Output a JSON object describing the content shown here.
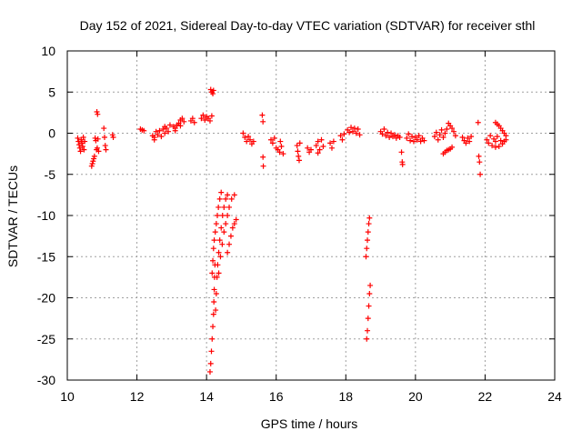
{
  "chart_data": {
    "type": "scatter",
    "title": "Day 152 of 2021, Sidereal Day-to-day VTEC variation (SDTVAR) for receiver sthl",
    "xlabel": "GPS time / hours",
    "ylabel": "SDTVAR / TECUs",
    "xlim": [
      10,
      24
    ],
    "ylim": [
      -30,
      10
    ],
    "xticks": [
      10,
      12,
      14,
      16,
      18,
      20,
      22,
      24
    ],
    "yticks": [
      10,
      5,
      0,
      -5,
      -10,
      -15,
      -20,
      -25,
      -30
    ],
    "xtick_labels": [
      "10",
      "12",
      "14",
      "16",
      "18",
      "20",
      "22",
      "24"
    ],
    "ytick_labels": [
      "10",
      "5",
      "0",
      "-5",
      "-10",
      "-15",
      "-20",
      "-25",
      "-30"
    ],
    "grid": true,
    "marker": "+",
    "color": "#ff0000",
    "series": [
      {
        "name": "SDTVAR",
        "points": [
          [
            10.3,
            -0.6
          ],
          [
            10.32,
            -1.0
          ],
          [
            10.34,
            -1.4
          ],
          [
            10.36,
            -1.8
          ],
          [
            10.38,
            -2.2
          ],
          [
            10.4,
            -0.8
          ],
          [
            10.42,
            -1.2
          ],
          [
            10.44,
            -1.6
          ],
          [
            10.46,
            -0.5
          ],
          [
            10.48,
            -2.0
          ],
          [
            10.5,
            -1.0
          ],
          [
            10.7,
            -4.0
          ],
          [
            10.72,
            -3.7
          ],
          [
            10.74,
            -3.4
          ],
          [
            10.76,
            -3.1
          ],
          [
            10.78,
            -2.8
          ],
          [
            10.8,
            -0.6
          ],
          [
            10.82,
            -0.9
          ],
          [
            10.84,
            -2.0
          ],
          [
            10.86,
            -1.8
          ],
          [
            10.88,
            -0.7
          ],
          [
            10.9,
            -2.2
          ],
          [
            10.85,
            2.6
          ],
          [
            10.87,
            2.3
          ],
          [
            11.05,
            0.6
          ],
          [
            11.07,
            -0.5
          ],
          [
            11.09,
            -1.5
          ],
          [
            11.11,
            -2.0
          ],
          [
            11.3,
            -0.2
          ],
          [
            11.32,
            -0.5
          ],
          [
            12.1,
            0.5
          ],
          [
            12.15,
            0.4
          ],
          [
            12.2,
            0.3
          ],
          [
            12.45,
            -0.3
          ],
          [
            12.5,
            -0.5
          ],
          [
            12.55,
            0.2
          ],
          [
            12.6,
            -0.2
          ],
          [
            12.65,
            0.3
          ],
          [
            12.7,
            -0.4
          ],
          [
            12.75,
            0.5
          ],
          [
            12.8,
            0.0
          ],
          [
            12.85,
            0.6
          ],
          [
            12.9,
            0.2
          ],
          [
            12.95,
            1.0
          ],
          [
            12.5,
            -0.8
          ],
          [
            12.8,
            0.8
          ],
          [
            13.05,
            0.8
          ],
          [
            13.1,
            0.6
          ],
          [
            13.15,
            1.0
          ],
          [
            13.2,
            1.2
          ],
          [
            13.25,
            1.6
          ],
          [
            13.3,
            1.8
          ],
          [
            13.35,
            1.4
          ],
          [
            13.1,
            0.3
          ],
          [
            13.25,
            0.9
          ],
          [
            13.55,
            1.5
          ],
          [
            13.6,
            1.8
          ],
          [
            13.65,
            1.3
          ],
          [
            13.85,
            1.8
          ],
          [
            13.9,
            2.2
          ],
          [
            13.95,
            1.6
          ],
          [
            14.0,
            2.0
          ],
          [
            14.05,
            1.8
          ],
          [
            14.1,
            1.5
          ],
          [
            14.15,
            2.1
          ],
          [
            14.12,
            5.3
          ],
          [
            14.15,
            5.0
          ],
          [
            14.18,
            4.8
          ],
          [
            14.2,
            5.2
          ],
          [
            14.1,
            -29.0
          ],
          [
            14.12,
            -28.0
          ],
          [
            14.14,
            -26.5
          ],
          [
            14.16,
            -25.0
          ],
          [
            14.18,
            -23.5
          ],
          [
            14.2,
            -22.0
          ],
          [
            14.21,
            -20.5
          ],
          [
            14.22,
            -19.0
          ],
          [
            14.23,
            -17.5
          ],
          [
            14.24,
            -16.0
          ],
          [
            14.16,
            -17.0
          ],
          [
            14.18,
            -15.5
          ],
          [
            14.2,
            -14.0
          ],
          [
            14.22,
            -13.0
          ],
          [
            14.25,
            -12.0
          ],
          [
            14.28,
            -11.0
          ],
          [
            14.31,
            -10.0
          ],
          [
            14.34,
            -9.0
          ],
          [
            14.38,
            -8.0
          ],
          [
            14.42,
            -7.2
          ],
          [
            14.26,
            -21.5
          ],
          [
            14.28,
            -19.5
          ],
          [
            14.3,
            -17.5
          ],
          [
            14.32,
            -16.0
          ],
          [
            14.35,
            -14.5
          ],
          [
            14.38,
            -13.0
          ],
          [
            14.42,
            -11.5
          ],
          [
            14.46,
            -10.0
          ],
          [
            14.5,
            -9.0
          ],
          [
            14.55,
            -8.0
          ],
          [
            14.6,
            -7.5
          ],
          [
            14.35,
            -17.0
          ],
          [
            14.4,
            -15.0
          ],
          [
            14.45,
            -13.5
          ],
          [
            14.5,
            -12.0
          ],
          [
            14.55,
            -11.0
          ],
          [
            14.6,
            -10.0
          ],
          [
            14.65,
            -9.0
          ],
          [
            14.72,
            -8.0
          ],
          [
            14.8,
            -7.5
          ],
          [
            14.6,
            -14.5
          ],
          [
            14.65,
            -13.5
          ],
          [
            14.7,
            -12.5
          ],
          [
            14.75,
            -11.5
          ],
          [
            14.8,
            -11.0
          ],
          [
            14.85,
            -10.5
          ],
          [
            15.05,
            0.0
          ],
          [
            15.1,
            -0.5
          ],
          [
            15.15,
            -1.0
          ],
          [
            15.2,
            -0.4
          ],
          [
            15.25,
            -0.8
          ],
          [
            15.3,
            -1.3
          ],
          [
            15.35,
            -1.0
          ],
          [
            15.6,
            2.2
          ],
          [
            15.62,
            1.4
          ],
          [
            15.62,
            -2.9
          ],
          [
            15.63,
            -4.0
          ],
          [
            15.85,
            -0.8
          ],
          [
            15.9,
            -1.2
          ],
          [
            15.95,
            -0.6
          ],
          [
            16.0,
            -1.8
          ],
          [
            16.05,
            -2.0
          ],
          [
            16.1,
            -2.3
          ],
          [
            16.15,
            -1.6
          ],
          [
            16.2,
            -2.5
          ],
          [
            16.12,
            -1.0
          ],
          [
            16.6,
            -1.5
          ],
          [
            16.62,
            -2.2
          ],
          [
            16.64,
            -2.8
          ],
          [
            16.66,
            -3.3
          ],
          [
            16.68,
            -1.2
          ],
          [
            16.9,
            -1.8
          ],
          [
            16.95,
            -2.3
          ],
          [
            17.0,
            -2.0
          ],
          [
            17.15,
            -1.5
          ],
          [
            17.2,
            -1.0
          ],
          [
            17.25,
            -2.0
          ],
          [
            17.3,
            -0.8
          ],
          [
            17.35,
            -1.6
          ],
          [
            17.2,
            -2.4
          ],
          [
            17.55,
            -1.2
          ],
          [
            17.6,
            -1.8
          ],
          [
            17.65,
            -1.0
          ],
          [
            17.85,
            -0.3
          ],
          [
            17.9,
            -0.8
          ],
          [
            17.95,
            -0.1
          ],
          [
            18.05,
            0.4
          ],
          [
            18.1,
            0.1
          ],
          [
            18.15,
            0.7
          ],
          [
            18.2,
            0.2
          ],
          [
            18.25,
            0.6
          ],
          [
            18.3,
            0.0
          ],
          [
            18.35,
            0.5
          ],
          [
            18.4,
            -0.2
          ],
          [
            18.6,
            -25.0
          ],
          [
            18.62,
            -24.0
          ],
          [
            18.64,
            -22.5
          ],
          [
            18.66,
            -21.0
          ],
          [
            18.68,
            -19.5
          ],
          [
            18.7,
            -18.5
          ],
          [
            18.58,
            -15.0
          ],
          [
            18.6,
            -14.0
          ],
          [
            18.62,
            -13.0
          ],
          [
            18.64,
            -12.0
          ],
          [
            18.66,
            -11.0
          ],
          [
            18.68,
            -10.3
          ],
          [
            19.0,
            0.2
          ],
          [
            19.05,
            -0.1
          ],
          [
            19.1,
            0.5
          ],
          [
            19.15,
            -0.3
          ],
          [
            19.2,
            0.1
          ],
          [
            19.25,
            -0.5
          ],
          [
            19.3,
            0.0
          ],
          [
            19.35,
            -0.4
          ],
          [
            19.4,
            -0.2
          ],
          [
            19.45,
            -0.6
          ],
          [
            19.5,
            -0.3
          ],
          [
            19.55,
            -0.5
          ],
          [
            19.6,
            -2.3
          ],
          [
            19.62,
            -3.5
          ],
          [
            19.63,
            -3.8
          ],
          [
            19.75,
            -0.6
          ],
          [
            19.8,
            -0.1
          ],
          [
            19.85,
            -0.9
          ],
          [
            19.9,
            -0.4
          ],
          [
            19.95,
            -1.0
          ],
          [
            20.0,
            -0.5
          ],
          [
            20.05,
            -0.8
          ],
          [
            20.1,
            -0.3
          ],
          [
            20.15,
            -1.0
          ],
          [
            20.2,
            -0.6
          ],
          [
            20.25,
            -0.9
          ],
          [
            20.55,
            -0.4
          ],
          [
            20.6,
            0.1
          ],
          [
            20.65,
            -0.8
          ],
          [
            20.7,
            -0.2
          ],
          [
            20.75,
            0.4
          ],
          [
            20.8,
            -0.5
          ],
          [
            20.85,
            0.0
          ],
          [
            20.9,
            0.5
          ],
          [
            20.95,
            1.2
          ],
          [
            21.0,
            0.9
          ],
          [
            21.05,
            0.6
          ],
          [
            21.1,
            0.2
          ],
          [
            21.15,
            -0.3
          ],
          [
            20.8,
            -2.5
          ],
          [
            20.85,
            -2.3
          ],
          [
            20.9,
            -2.1
          ],
          [
            20.95,
            -2.0
          ],
          [
            21.0,
            -1.9
          ],
          [
            21.05,
            -1.7
          ],
          [
            21.35,
            -0.5
          ],
          [
            21.4,
            -0.9
          ],
          [
            21.45,
            -1.2
          ],
          [
            21.5,
            -0.6
          ],
          [
            21.55,
            -1.0
          ],
          [
            21.6,
            -0.4
          ],
          [
            21.8,
            1.3
          ],
          [
            21.82,
            -2.8
          ],
          [
            21.84,
            -3.5
          ],
          [
            21.86,
            -5.0
          ],
          [
            22.05,
            -0.8
          ],
          [
            22.1,
            -1.2
          ],
          [
            22.15,
            -0.3
          ],
          [
            22.2,
            -1.5
          ],
          [
            22.25,
            -0.7
          ],
          [
            22.3,
            -1.0
          ],
          [
            22.35,
            -0.4
          ],
          [
            22.4,
            -1.6
          ],
          [
            22.45,
            -0.9
          ],
          [
            22.3,
            1.3
          ],
          [
            22.35,
            1.1
          ],
          [
            22.4,
            0.9
          ],
          [
            22.45,
            0.6
          ],
          [
            22.5,
            0.3
          ],
          [
            22.55,
            0.0
          ],
          [
            22.6,
            -0.3
          ],
          [
            22.5,
            -1.3
          ],
          [
            22.55,
            -1.0
          ],
          [
            22.6,
            -0.8
          ],
          [
            22.3,
            -1.7
          ]
        ]
      }
    ]
  }
}
